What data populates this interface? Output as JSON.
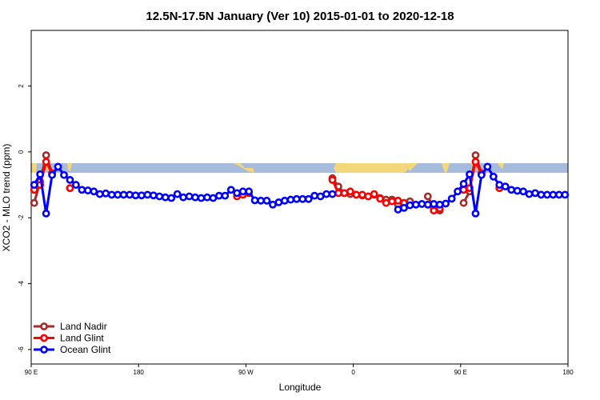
{
  "chart_data": {
    "type": "line",
    "title": "12.5N-17.5N January (Ver 10)   2015-01-01 to 2020-12-18",
    "x_label": "Longitude",
    "y_label": "XCO2 - MLO trend (ppm)",
    "xlim": [
      90,
      540
    ],
    "ylim": [
      -6.44,
      3.69
    ],
    "xticks": [
      {
        "value": 90,
        "label": "90 E"
      },
      180,
      {
        "value": 270,
        "label": "90 W"
      },
      {
        "value": 360,
        "label": "0"
      },
      {
        "value": 450,
        "label": "90 E"
      },
      {
        "value": 540,
        "label": "180"
      }
    ],
    "yticks": [
      -6,
      -4,
      -2,
      0,
      2
    ],
    "legend": "bottom-left",
    "x": [
      92.5,
      97.5,
      102.5,
      107.5,
      112.5,
      117.5,
      122.5,
      127.5,
      132.5,
      137.5,
      142.5,
      147.5,
      152.5,
      157.5,
      162.5,
      167.5,
      172.5,
      177.5,
      182.5,
      187.5,
      192.5,
      197.5,
      202.5,
      207.5,
      212.5,
      217.5,
      222.5,
      227.5,
      232.5,
      237.5,
      242.5,
      247.5,
      252.5,
      257.5,
      262.5,
      267.5,
      272.5,
      277.5,
      282.5,
      287.5,
      292.5,
      297.5,
      302.5,
      307.5,
      312.5,
      317.5,
      322.5,
      327.5,
      332.5,
      337.5,
      342.5,
      347.5,
      352.5,
      357.5,
      362.5,
      367.5,
      372.5,
      377.5,
      382.5,
      387.5,
      392.5,
      397.5,
      402.5,
      407.5,
      412.5,
      417.5,
      422.5,
      427.5,
      432.5,
      437.5,
      442.5,
      447.5,
      452.5,
      457.5,
      462.5,
      467.5,
      472.5,
      477.5,
      482.5,
      487.5,
      492.5,
      497.5,
      502.5,
      507.5,
      512.5,
      517.5,
      522.5,
      527.5,
      532.5,
      537.5
    ],
    "series": [
      {
        "name": "Land Nadir",
        "color": "#a52a2a",
        "values": [
          -1.55,
          -0.9,
          -0.1,
          -0.65,
          null,
          null,
          -1.1,
          null,
          null,
          null,
          null,
          null,
          null,
          null,
          null,
          null,
          null,
          null,
          null,
          null,
          null,
          null,
          null,
          null,
          null,
          null,
          null,
          null,
          null,
          null,
          null,
          null,
          null,
          null,
          null,
          null,
          null,
          null,
          null,
          null,
          null,
          null,
          null,
          null,
          null,
          null,
          null,
          null,
          null,
          null,
          -0.8,
          -1.05,
          -1.25,
          -1.28,
          -1.3,
          -1.32,
          -1.35,
          -1.3,
          -1.4,
          -1.45,
          -1.45,
          -1.6,
          -1.55,
          -1.5,
          null,
          null,
          -1.35,
          -1.7,
          -1.78,
          null,
          null,
          null,
          -1.55,
          -1.2,
          -0.1,
          -0.65,
          null,
          null,
          -1.1,
          null,
          null,
          null,
          null,
          null,
          null,
          null,
          null,
          null,
          null,
          null
        ]
      },
      {
        "name": "Land Glint",
        "color": "#ff0000",
        "values": [
          -1.15,
          -1.0,
          -0.3,
          -0.65,
          null,
          null,
          -1.1,
          null,
          null,
          null,
          null,
          null,
          null,
          null,
          null,
          null,
          null,
          null,
          null,
          null,
          null,
          null,
          null,
          null,
          null,
          null,
          null,
          null,
          null,
          null,
          null,
          null,
          null,
          null,
          -1.35,
          -1.3,
          -1.25,
          null,
          null,
          null,
          null,
          null,
          null,
          null,
          null,
          null,
          null,
          null,
          null,
          null,
          -0.85,
          -1.25,
          -1.25,
          -1.2,
          -1.3,
          -1.3,
          -1.35,
          -1.28,
          -1.42,
          -1.55,
          -1.5,
          -1.48,
          -1.55,
          null,
          null,
          null,
          -1.6,
          -1.78,
          -1.72,
          null,
          null,
          null,
          -1.15,
          -1.1,
          -0.3,
          -0.65,
          null,
          null,
          -1.1,
          null,
          null,
          null,
          null,
          null,
          null,
          null,
          null,
          null,
          null,
          null
        ]
      },
      {
        "name": "Ocean Glint",
        "color": "#0000ff",
        "values": [
          -1.0,
          -0.68,
          -1.87,
          -0.7,
          -0.45,
          -0.7,
          -0.85,
          -1.0,
          -1.15,
          -1.17,
          -1.2,
          -1.28,
          -1.26,
          -1.3,
          -1.3,
          -1.3,
          -1.3,
          -1.32,
          -1.32,
          -1.3,
          -1.32,
          -1.35,
          -1.38,
          -1.4,
          -1.28,
          -1.38,
          -1.35,
          -1.38,
          -1.4,
          -1.38,
          -1.4,
          -1.33,
          -1.33,
          -1.15,
          -1.25,
          -1.2,
          -1.2,
          -1.47,
          -1.48,
          -1.48,
          -1.6,
          -1.53,
          -1.48,
          -1.45,
          -1.43,
          -1.43,
          -1.43,
          -1.33,
          -1.35,
          -1.28,
          -1.28,
          null,
          null,
          null,
          null,
          null,
          null,
          null,
          null,
          null,
          null,
          -1.75,
          -1.7,
          -1.62,
          -1.6,
          -1.58,
          -1.6,
          -1.58,
          -1.6,
          -1.57,
          -1.42,
          -1.2,
          -0.97,
          -0.68,
          -1.87,
          -0.7,
          -0.45,
          -0.75,
          -1.0,
          -1.05,
          -1.15,
          -1.18,
          -1.2,
          -1.28,
          -1.25,
          -1.3,
          -1.3,
          -1.3,
          -1.3,
          -1.3
        ]
      }
    ]
  }
}
